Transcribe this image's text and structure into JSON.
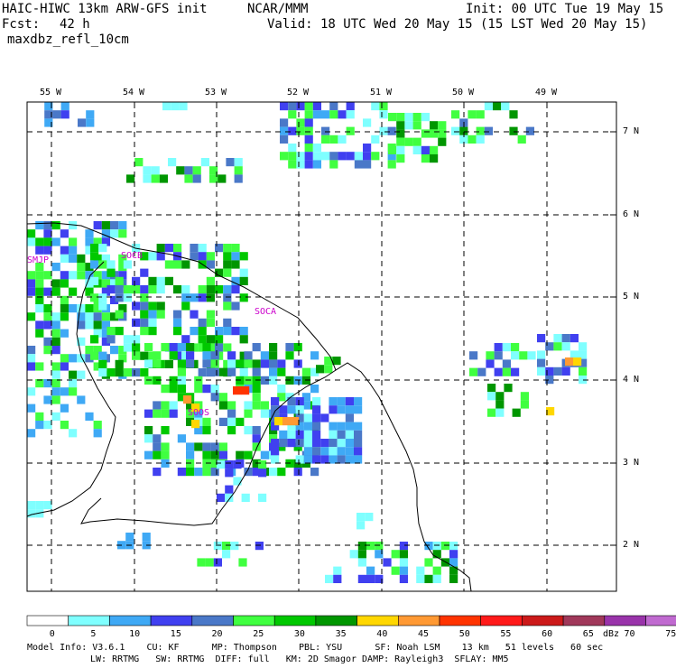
{
  "header": {
    "title": "HAIC-HIWC 13km ARW-GFS init",
    "org": "NCAR/MMM",
    "init": "Init: 00 UTC Tue 19 May 15",
    "fcst_label": "Fcst:",
    "fcst_value": "42 h",
    "valid": "Valid: 18 UTC Wed 20 May 15 (15 LST Wed 20 May 15)",
    "field": "maxdbz_refl_10cm"
  },
  "map": {
    "lon_labels": [
      "55 W",
      "54 W",
      "53 W",
      "52 W",
      "51 W",
      "50 W",
      "49 W"
    ],
    "lat_labels": [
      "7 N",
      "6 N",
      "5 N",
      "4 N",
      "3 N",
      "2 N"
    ],
    "stations": [
      "SMJP",
      "SOCB",
      "SOCA",
      "SOOS"
    ]
  },
  "colorbar": {
    "ticks": [
      "0",
      "5",
      "10",
      "15",
      "20",
      "25",
      "30",
      "35",
      "40",
      "45",
      "50",
      "55",
      "60",
      "65",
      "70",
      "75"
    ],
    "unit": "dBz",
    "colors": [
      "#ffffff",
      "#7fffff",
      "#3fa9f5",
      "#4040f0",
      "#4a78c8",
      "#40ff40",
      "#00c800",
      "#009600",
      "#ffd700",
      "#ff9933",
      "#ff3300",
      "#ff1a1a",
      "#cc1a1a",
      "#a0385a",
      "#9933aa",
      "#c06ad0"
    ]
  },
  "model_info": {
    "line1": "Model Info: V3.6.1    CU: KF      MP: Thompson    PBL: YSU      SF: Noah LSM    13 km   51 levels   60 sec",
    "line2": "LW: RRTMG   SW: RRTMG  DIFF: full   KM: 2D Smagor DAMP: Rayleigh3  SFLAY: MM5"
  }
}
